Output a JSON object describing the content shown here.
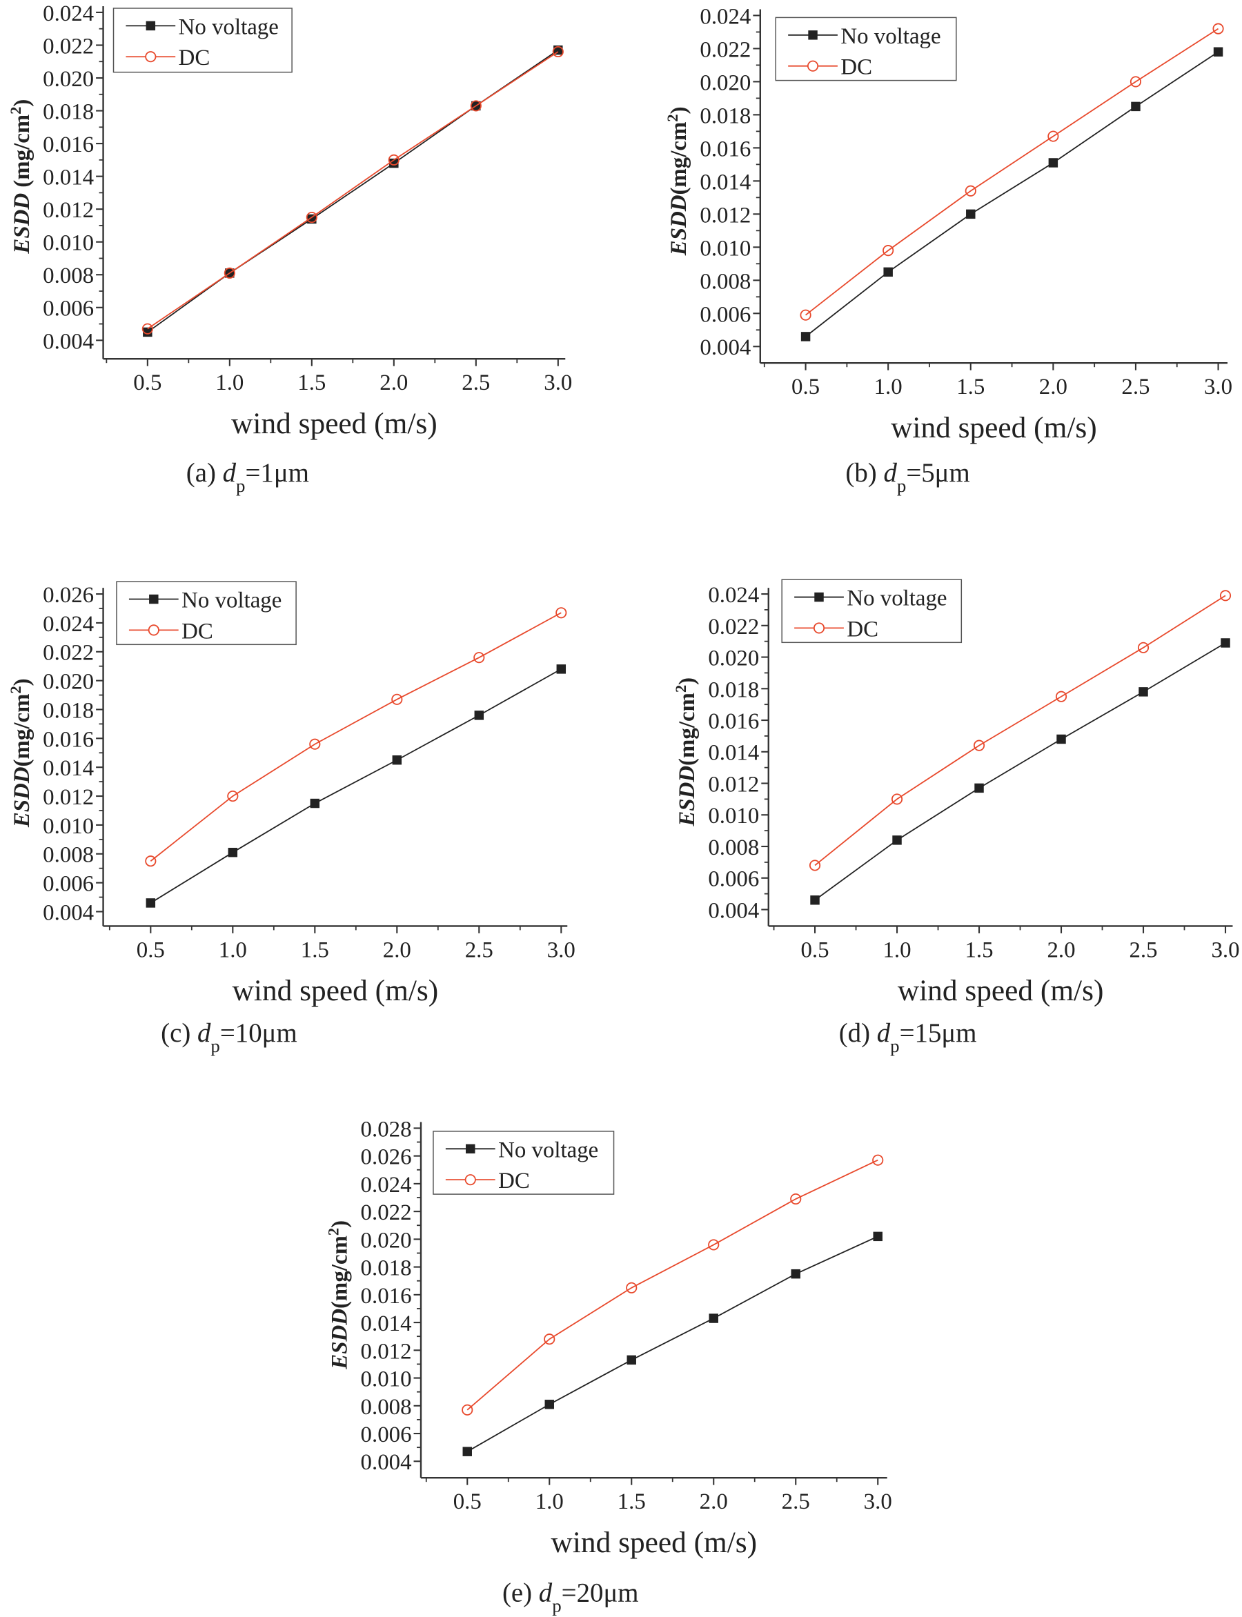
{
  "colors": {
    "no_voltage": "#222222",
    "dc": "#e8492c",
    "axis": "#333333"
  },
  "chart_data": [
    {
      "type": "line",
      "panel": "a",
      "caption": {
        "prefix": "(a) ",
        "symbol": "d",
        "sub": "p",
        "suffix": "=1μm"
      },
      "xlabel": "wind speed (m/s)",
      "ylabel": {
        "main": "ESDD",
        "unit": " (mg/cm",
        "sup": "2",
        "close": ")"
      },
      "xlim": [
        0.5,
        3.0
      ],
      "ylim": [
        0.004,
        0.024
      ],
      "xticks": [
        "0.5",
        "1.0",
        "1.5",
        "2.0",
        "2.5",
        "3.0"
      ],
      "yticks": [
        "0.004",
        "0.006",
        "0.008",
        "0.010",
        "0.012",
        "0.014",
        "0.016",
        "0.018",
        "0.020",
        "0.022",
        "0.024"
      ],
      "x": [
        0.5,
        1.0,
        1.5,
        2.0,
        2.5,
        3.0
      ],
      "legend_placement": "top-left",
      "grid": false,
      "series": [
        {
          "name": "No voltage",
          "marker": "filled-square",
          "values": [
            0.0045,
            0.0081,
            0.0114,
            0.0148,
            0.0183,
            0.0217
          ]
        },
        {
          "name": "DC",
          "marker": "open-circle",
          "values": [
            0.0047,
            0.0081,
            0.0115,
            0.015,
            0.0183,
            0.0216
          ]
        }
      ]
    },
    {
      "type": "line",
      "panel": "b",
      "caption": {
        "prefix": "(b) ",
        "symbol": "d",
        "sub": "p",
        "suffix": "=5μm"
      },
      "xlabel": "wind speed (m/s)",
      "ylabel": {
        "main": "ESDD",
        "unit": "(mg/cm",
        "sup": "2",
        "close": ")"
      },
      "xlim": [
        0.5,
        3.0
      ],
      "ylim": [
        0.004,
        0.024
      ],
      "xticks": [
        "0.5",
        "1.0",
        "1.5",
        "2.0",
        "2.5",
        "3.0"
      ],
      "yticks": [
        "0.004",
        "0.006",
        "0.008",
        "0.010",
        "0.012",
        "0.014",
        "0.016",
        "0.018",
        "0.020",
        "0.022",
        "0.024"
      ],
      "x": [
        0.5,
        1.0,
        1.5,
        2.0,
        2.5,
        3.0
      ],
      "legend_placement": "top-left",
      "grid": false,
      "series": [
        {
          "name": "No voltage",
          "marker": "filled-square",
          "values": [
            0.0046,
            0.0085,
            0.012,
            0.0151,
            0.0185,
            0.0218
          ]
        },
        {
          "name": "DC",
          "marker": "open-circle",
          "values": [
            0.0059,
            0.0098,
            0.0134,
            0.0167,
            0.02,
            0.0232
          ]
        }
      ]
    },
    {
      "type": "line",
      "panel": "c",
      "caption": {
        "prefix": "(c) ",
        "symbol": "d",
        "sub": "p",
        "suffix": "=10μm"
      },
      "xlabel": "wind speed (m/s)",
      "ylabel": {
        "main": "ESDD",
        "unit": "(mg/cm",
        "sup": "2",
        "close": ")"
      },
      "xlim": [
        0.5,
        3.0
      ],
      "ylim": [
        0.004,
        0.026
      ],
      "xticks": [
        "0.5",
        "1.0",
        "1.5",
        "2.0",
        "2.5",
        "3.0"
      ],
      "yticks": [
        "0.004",
        "0.006",
        "0.008",
        "0.010",
        "0.012",
        "0.014",
        "0.016",
        "0.018",
        "0.020",
        "0.022",
        "0.024",
        "0.026"
      ],
      "x": [
        0.5,
        1.0,
        1.5,
        2.0,
        2.5,
        3.0
      ],
      "legend_placement": "top-left",
      "grid": false,
      "series": [
        {
          "name": "No voltage",
          "marker": "filled-square",
          "values": [
            0.0046,
            0.0081,
            0.0115,
            0.0145,
            0.0176,
            0.0208
          ]
        },
        {
          "name": "DC",
          "marker": "open-circle",
          "values": [
            0.0075,
            0.012,
            0.0156,
            0.0187,
            0.0216,
            0.0247
          ]
        }
      ]
    },
    {
      "type": "line",
      "panel": "d",
      "caption": {
        "prefix": "(d) ",
        "symbol": "d",
        "sub": "p",
        "suffix": "=15μm"
      },
      "xlabel": "wind speed (m/s)",
      "ylabel": {
        "main": "ESDD",
        "unit": "(mg/cm",
        "sup": "2",
        "close": ")"
      },
      "xlim": [
        0.5,
        3.0
      ],
      "ylim": [
        0.004,
        0.024
      ],
      "xticks": [
        "0.5",
        "1.0",
        "1.5",
        "2.0",
        "2.5",
        "3.0"
      ],
      "yticks": [
        "0.004",
        "0.006",
        "0.008",
        "0.010",
        "0.012",
        "0.014",
        "0.016",
        "0.018",
        "0.020",
        "0.022",
        "0.024"
      ],
      "x": [
        0.5,
        1.0,
        1.5,
        2.0,
        2.5,
        3.0
      ],
      "legend_placement": "top-left",
      "grid": false,
      "series": [
        {
          "name": "No voltage",
          "marker": "filled-square",
          "values": [
            0.0046,
            0.0084,
            0.0117,
            0.0148,
            0.0178,
            0.0209
          ]
        },
        {
          "name": "DC",
          "marker": "open-circle",
          "values": [
            0.0068,
            0.011,
            0.0144,
            0.0175,
            0.0206,
            0.0239
          ]
        }
      ]
    },
    {
      "type": "line",
      "panel": "e",
      "caption": {
        "prefix": "(e) ",
        "symbol": "d",
        "sub": "p",
        "suffix": "=20μm"
      },
      "xlabel": "wind speed (m/s)",
      "ylabel": {
        "main": "ESDD",
        "unit": "(mg/cm",
        "sup": "2",
        "close": ")"
      },
      "xlim": [
        0.5,
        3.0
      ],
      "ylim": [
        0.004,
        0.028
      ],
      "xticks": [
        "0.5",
        "1.0",
        "1.5",
        "2.0",
        "2.5",
        "3.0"
      ],
      "yticks": [
        "0.004",
        "0.006",
        "0.008",
        "0.010",
        "0.012",
        "0.014",
        "0.016",
        "0.018",
        "0.020",
        "0.022",
        "0.024",
        "0.026",
        "0.028"
      ],
      "x": [
        0.5,
        1.0,
        1.5,
        2.0,
        2.5,
        3.0
      ],
      "legend_placement": "top-left",
      "grid": false,
      "series": [
        {
          "name": "No voltage",
          "marker": "filled-square",
          "values": [
            0.0047,
            0.0081,
            0.0113,
            0.0143,
            0.0175,
            0.0202
          ]
        },
        {
          "name": "DC",
          "marker": "open-circle",
          "values": [
            0.0077,
            0.0128,
            0.0165,
            0.0196,
            0.0229,
            0.0257
          ]
        }
      ]
    }
  ]
}
